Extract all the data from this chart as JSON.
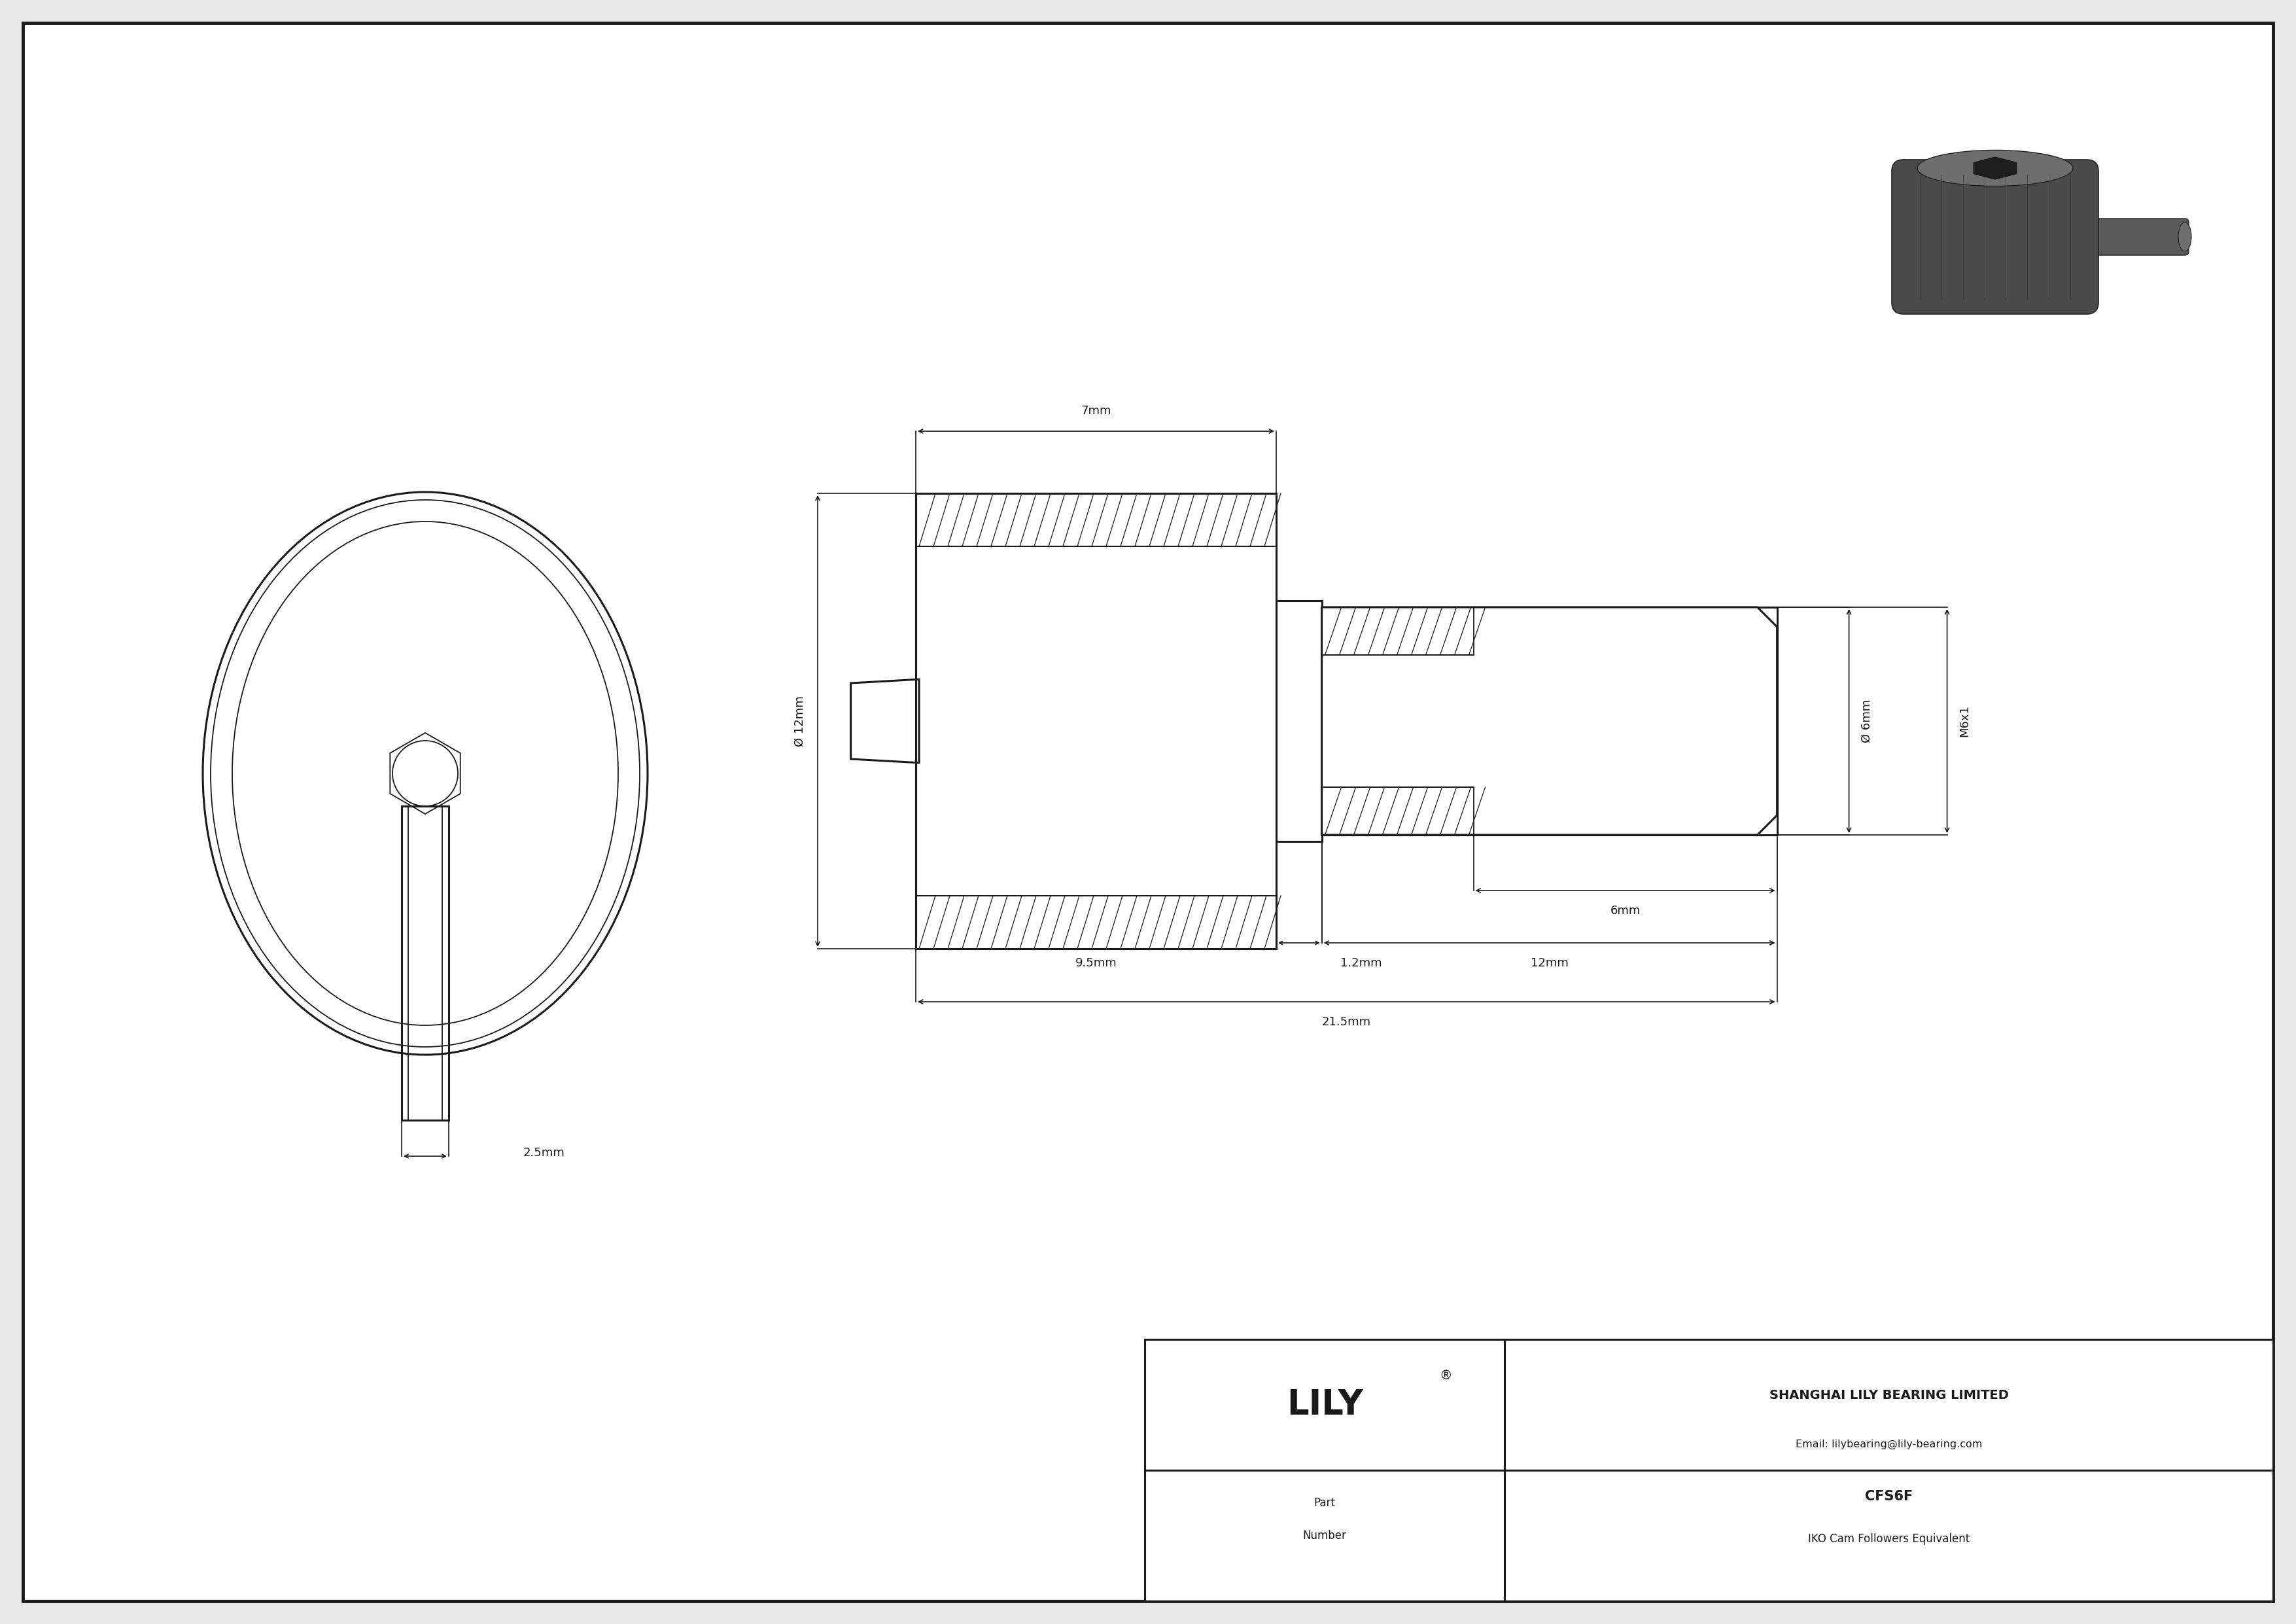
{
  "bg_color": "#e8e8e8",
  "drawing_bg": "#ffffff",
  "line_color": "#1a1a1a",
  "dim_7mm": "7mm",
  "dim_12mm_dia": "Ø 12mm",
  "dim_6mm_dia": "Ø 6mm",
  "dim_6mm": "6mm",
  "dim_12mm": "12mm",
  "dim_9_5mm": "9.5mm",
  "dim_1_2mm": "1.2mm",
  "dim_21_5mm": "21.5mm",
  "dim_2_5mm": "2.5mm",
  "dim_M6x1": "M6x1",
  "title_company": "SHANGHAI LILY BEARING LIMITED",
  "title_email": "Email: lilybearing@lily-bearing.com",
  "part_number": "CFS6F",
  "part_equiv": "IKO Cam Followers Equivalent",
  "logo_text": "LILY",
  "logo_reg": "®"
}
